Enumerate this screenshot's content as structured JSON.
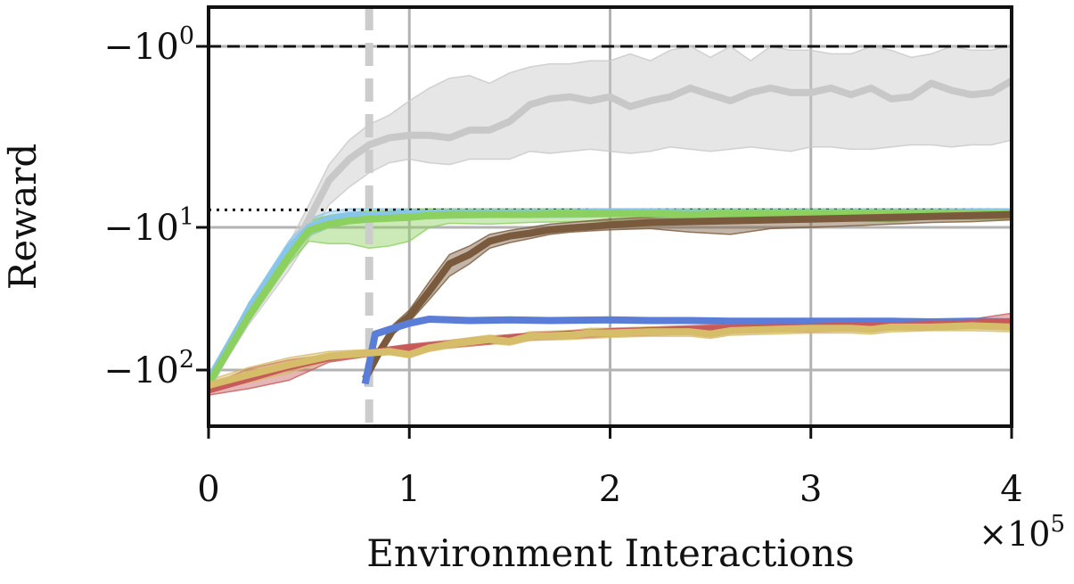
{
  "chart_data": {
    "type": "line",
    "title": "",
    "xlabel": "Environment Interactions",
    "ylabel": "Reward",
    "x_offset_label": "×10",
    "x_offset_exponent": "5",
    "y_scale": "symlog-negative",
    "xlim": [
      0,
      400000
    ],
    "ylim": [
      -170,
      -0.85
    ],
    "grid": true,
    "legend": "none",
    "x_ticks": [
      {
        "value": 0,
        "label": "0"
      },
      {
        "value": 100000,
        "label": "1"
      },
      {
        "value": 200000,
        "label": "2"
      },
      {
        "value": 300000,
        "label": "3"
      },
      {
        "value": 400000,
        "label": "4"
      }
    ],
    "y_ticks": [
      {
        "value": -1,
        "base": "−10",
        "exp": "0"
      },
      {
        "value": -10,
        "base": "−10",
        "exp": "1"
      },
      {
        "value": -100,
        "base": "−10",
        "exp": "2"
      }
    ],
    "reference_lines": [
      {
        "type": "horizontal",
        "value": -1,
        "style": "dashed",
        "color": "#111111"
      },
      {
        "type": "horizontal",
        "value": -8,
        "style": "dotted",
        "color": "#111111"
      },
      {
        "type": "vertical",
        "value": 80000,
        "style": "dashed",
        "color": "#cccccc"
      }
    ],
    "series": [
      {
        "color": "#c8c8c8",
        "x": [
          0,
          20000,
          40000,
          50000,
          60000,
          70000,
          80000,
          90000,
          100000,
          110000,
          120000,
          130000,
          140000,
          150000,
          160000,
          170000,
          180000,
          190000,
          200000,
          210000,
          220000,
          230000,
          240000,
          250000,
          260000,
          270000,
          280000,
          290000,
          300000,
          310000,
          320000,
          330000,
          340000,
          350000,
          360000,
          370000,
          380000,
          390000,
          400000
        ],
        "y": [
          -130,
          -40,
          -16,
          -9,
          -5.5,
          -4.2,
          -3.5,
          -3.2,
          -3.1,
          -3.1,
          -3.2,
          -2.9,
          -2.9,
          -2.6,
          -2.1,
          -1.95,
          -1.9,
          -2.0,
          -1.9,
          -2.15,
          -2.0,
          -1.9,
          -1.7,
          -1.85,
          -2.0,
          -1.8,
          -1.7,
          -1.8,
          -1.8,
          -1.7,
          -1.85,
          -1.7,
          -1.95,
          -1.9,
          -1.6,
          -1.75,
          -1.85,
          -1.8,
          -1.55
        ],
        "lower": [
          -135,
          -48,
          -20,
          -12,
          -7.5,
          -6,
          -5,
          -4.4,
          -4.2,
          -4.4,
          -4.5,
          -4.2,
          -4.2,
          -4.2,
          -3.8,
          -3.9,
          -3.8,
          -3.7,
          -3.8,
          -3.9,
          -3.8,
          -3.6,
          -3.7,
          -3.8,
          -3.7,
          -3.6,
          -3.7,
          -3.8,
          -3.6,
          -3.6,
          -3.7,
          -3.7,
          -3.6,
          -3.5,
          -3.5,
          -3.6,
          -3.5,
          -3.5,
          -3.3
        ],
        "upper": [
          -125,
          -34,
          -13,
          -7.5,
          -4.5,
          -3.3,
          -2.7,
          -2.4,
          -2.0,
          -1.7,
          -1.5,
          -1.45,
          -1.6,
          -1.4,
          -1.3,
          -1.25,
          -1.25,
          -1.2,
          -1.2,
          -1.1,
          -1.2,
          -1.05,
          -1.0,
          -1.15,
          -1.0,
          -1.2,
          -1.0,
          -1.05,
          -1.05,
          -1.1,
          -1.1,
          -1.0,
          -1.05,
          -1.15,
          -1.1,
          -1.0,
          -1.05,
          -1.05,
          -0.98
        ]
      },
      {
        "color": "#87c5ea",
        "x": [
          0,
          20000,
          40000,
          50000,
          60000,
          70000,
          80000,
          100000,
          120000,
          140000,
          160000,
          180000,
          200000,
          240000,
          280000,
          320000,
          360000,
          400000
        ],
        "y": [
          -118,
          -38,
          -14,
          -10,
          -9,
          -8.6,
          -8.6,
          -8.4,
          -8.3,
          -8.3,
          -8.3,
          -8.3,
          -8.2,
          -8.3,
          -8.3,
          -8.3,
          -8.3,
          -8.2
        ],
        "lower": [
          -123,
          -42,
          -16,
          -11.5,
          -10,
          -9.4,
          -9.2,
          -9,
          -8.9,
          -8.8,
          -8.8,
          -8.8,
          -8.7,
          -8.8,
          -8.8,
          -8.8,
          -8.8,
          -8.7
        ],
        "upper": [
          -113,
          -34,
          -12.5,
          -9,
          -8.2,
          -7.9,
          -7.9,
          -7.9,
          -7.9,
          -7.9,
          -7.9,
          -7.9,
          -7.9,
          -7.9,
          -7.9,
          -7.9,
          -7.9,
          -7.9
        ]
      },
      {
        "color": "#8cd060",
        "x": [
          0,
          20000,
          40000,
          50000,
          60000,
          70000,
          80000,
          90000,
          100000,
          110000,
          120000,
          140000,
          160000,
          180000,
          200000,
          220000,
          240000,
          260000,
          280000,
          300000,
          320000,
          340000,
          360000,
          380000,
          400000
        ],
        "y": [
          -125,
          -42,
          -16,
          -10.5,
          -9.6,
          -9.2,
          -9.0,
          -8.9,
          -8.8,
          -8.6,
          -8.5,
          -8.5,
          -8.5,
          -8.4,
          -8.4,
          -8.4,
          -8.5,
          -8.4,
          -8.4,
          -8.4,
          -8.4,
          -8.4,
          -8.4,
          -8.4,
          -8.4
        ],
        "lower": [
          -130,
          -46,
          -18,
          -12.5,
          -13,
          -13,
          -14,
          -13.5,
          -12.5,
          -10,
          -9.5,
          -9.6,
          -9.4,
          -9.3,
          -9.2,
          -9.4,
          -9.3,
          -9.2,
          -9.1,
          -9.1,
          -9.2,
          -9.3,
          -9.0,
          -9.0,
          -9.0
        ],
        "upper": [
          -120,
          -38,
          -14,
          -9.2,
          -8.6,
          -8.3,
          -8.1,
          -8.1,
          -8.0,
          -7.9,
          -7.9,
          -7.9,
          -7.9,
          -7.9,
          -7.9,
          -7.9,
          -7.9,
          -7.9,
          -7.9,
          -7.9,
          -7.9,
          -7.9,
          -7.9,
          -7.9,
          -7.9
        ]
      },
      {
        "color": "#7a5a3c",
        "x": [
          78000,
          85000,
          92000,
          100000,
          110000,
          120000,
          130000,
          140000,
          150000,
          160000,
          170000,
          180000,
          190000,
          200000,
          220000,
          240000,
          260000,
          280000,
          300000,
          320000,
          340000,
          360000,
          380000,
          400000
        ],
        "y": [
          -115,
          -75,
          -52,
          -42,
          -28,
          -18,
          -15.5,
          -12.5,
          -11.5,
          -11,
          -10.4,
          -10.1,
          -9.9,
          -9.7,
          -9.4,
          -9.3,
          -9.2,
          -9.1,
          -9.0,
          -8.9,
          -8.8,
          -8.7,
          -8.6,
          -8.5
        ],
        "lower": [
          -120,
          -80,
          -56,
          -46,
          -32,
          -22,
          -18,
          -14,
          -12.8,
          -12,
          -11.2,
          -10.8,
          -10.6,
          -10.4,
          -10.2,
          -10.8,
          -11.2,
          -10.2,
          -10.0,
          -9.8,
          -9.6,
          -9.4,
          -9.3,
          -9.1
        ],
        "upper": [
          -110,
          -70,
          -48,
          -38,
          -24,
          -15.5,
          -13.5,
          -11.2,
          -10.5,
          -10,
          -9.6,
          -9.4,
          -9.2,
          -9.0,
          -8.8,
          -8.6,
          -8.5,
          -8.4,
          -8.3,
          -8.2,
          -8.1,
          -8.1,
          -8.0,
          -8.0
        ]
      },
      {
        "color": "#5a7dd8",
        "x": [
          78000,
          83000,
          90000,
          100000,
          110000,
          130000,
          150000,
          170000,
          200000,
          220000,
          240000,
          260000,
          280000,
          300000,
          320000,
          340000,
          360000,
          380000,
          400000
        ],
        "y": [
          -125,
          -56,
          -52,
          -47,
          -44,
          -45,
          -44.5,
          -45,
          -44.5,
          -45,
          -45,
          -45.5,
          -45.5,
          -45.5,
          -45.5,
          -45.5,
          -46,
          -45.5,
          -46
        ],
        "lower": [
          -130,
          -58,
          -54,
          -49,
          -46,
          -46.5,
          -46,
          -46.5,
          -46,
          -46.5,
          -46.5,
          -47,
          -47,
          -47,
          -47,
          -47,
          -47.5,
          -47,
          -47.5
        ],
        "upper": [
          -120,
          -54,
          -50,
          -45,
          -42.5,
          -43.5,
          -43,
          -43.5,
          -43,
          -43.5,
          -43.5,
          -44,
          -44,
          -44,
          -44,
          -44,
          -44.5,
          -44,
          -44.5
        ]
      },
      {
        "color": "#c75a5a",
        "x": [
          0,
          20000,
          40000,
          60000,
          80000,
          100000,
          120000,
          140000,
          160000,
          180000,
          200000,
          220000,
          240000,
          260000,
          280000,
          300000,
          320000,
          340000,
          360000,
          380000,
          400000
        ],
        "y": [
          -138,
          -115,
          -95,
          -82,
          -76,
          -70,
          -66,
          -62,
          -58,
          -56,
          -54,
          -53,
          -52,
          -51,
          -50,
          -50,
          -49,
          -49,
          -48,
          -47,
          -46
        ],
        "lower": [
          -150,
          -135,
          -118,
          -88,
          -80,
          -74,
          -70,
          -66,
          -62,
          -60,
          -58,
          -57,
          -56,
          -55,
          -54,
          -54,
          -53,
          -52,
          -51,
          -51,
          -51
        ],
        "upper": [
          -128,
          -98,
          -85,
          -78,
          -72,
          -66,
          -62,
          -58,
          -55,
          -53,
          -51,
          -50,
          -49,
          -48,
          -47,
          -47,
          -46,
          -46,
          -45,
          -44,
          -40
        ]
      },
      {
        "color": "#d6bd6a",
        "x": [
          0,
          20000,
          40000,
          60000,
          80000,
          90000,
          100000,
          110000,
          120000,
          140000,
          150000,
          160000,
          180000,
          190000,
          200000,
          220000,
          240000,
          250000,
          260000,
          280000,
          300000,
          320000,
          330000,
          340000,
          360000,
          380000,
          400000
        ],
        "y": [
          -128,
          -108,
          -92,
          -80,
          -76,
          -74,
          -78,
          -70,
          -66,
          -61,
          -63,
          -58,
          -57,
          -55,
          -55,
          -54,
          -54,
          -56,
          -53,
          -52,
          -51,
          -51,
          -52,
          -50,
          -50,
          -49,
          -50
        ],
        "lower": [
          -140,
          -122,
          -105,
          -86,
          -80,
          -78,
          -82,
          -74,
          -70,
          -65,
          -67,
          -62,
          -61,
          -60,
          -59,
          -58,
          -58,
          -60,
          -57,
          -56,
          -55,
          -55,
          -56,
          -54,
          -53,
          -53,
          -54
        ],
        "upper": [
          -118,
          -96,
          -82,
          -74,
          -72,
          -70,
          -74,
          -66,
          -62,
          -57,
          -59,
          -54,
          -53,
          -51,
          -51,
          -50,
          -50,
          -52,
          -49,
          -48,
          -47,
          -47,
          -48,
          -46,
          -46,
          -45,
          -46
        ]
      }
    ]
  }
}
